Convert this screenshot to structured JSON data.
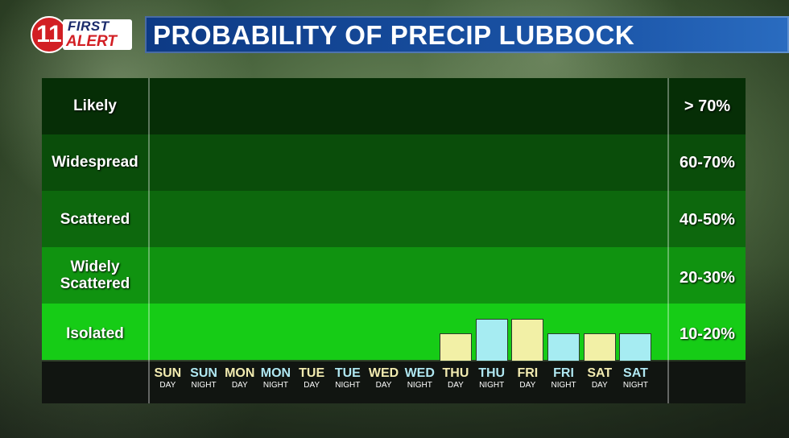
{
  "header": {
    "logo_number": "11",
    "logo_first": "FIRST",
    "logo_alert": "ALERT",
    "title": "PROBABILITY OF PRECIP LUBBOCK"
  },
  "colors": {
    "band_likely": "#062e06",
    "band_widespread": "#0a4d0a",
    "band_scattered": "#0d680d",
    "band_widely": "#109310",
    "band_isolated": "#16cc16",
    "day_bar": "#f2f0a6",
    "night_bar": "#a6ecf2",
    "day_text": "#f2ebb0",
    "night_text": "#b0e8f2"
  },
  "bands": [
    {
      "label": "Likely",
      "range": "> 70%"
    },
    {
      "label": "Widespread",
      "range": "60-70%"
    },
    {
      "label": "Scattered",
      "range": "40-50%"
    },
    {
      "label": "Widely Scattered",
      "range": "20-30%"
    },
    {
      "label": "Isolated",
      "range": "10-20%"
    }
  ],
  "chart_data": {
    "type": "bar",
    "title": "PROBABILITY OF PRECIP LUBBOCK",
    "categories": [
      {
        "day": "SUN",
        "period": "DAY"
      },
      {
        "day": "SUN",
        "period": "NIGHT"
      },
      {
        "day": "MON",
        "period": "DAY"
      },
      {
        "day": "MON",
        "period": "NIGHT"
      },
      {
        "day": "TUE",
        "period": "DAY"
      },
      {
        "day": "TUE",
        "period": "NIGHT"
      },
      {
        "day": "WED",
        "period": "DAY"
      },
      {
        "day": "WED",
        "period": "NIGHT"
      },
      {
        "day": "THU",
        "period": "DAY"
      },
      {
        "day": "THU",
        "period": "NIGHT"
      },
      {
        "day": "FRI",
        "period": "DAY"
      },
      {
        "day": "FRI",
        "period": "NIGHT"
      },
      {
        "day": "SAT",
        "period": "DAY"
      },
      {
        "day": "SAT",
        "period": "NIGHT"
      }
    ],
    "values": [
      0,
      0,
      0,
      0,
      0,
      0,
      0,
      0,
      10,
      15,
      15,
      10,
      10,
      10
    ],
    "ylabel": "",
    "ylim": [
      0,
      100
    ]
  }
}
